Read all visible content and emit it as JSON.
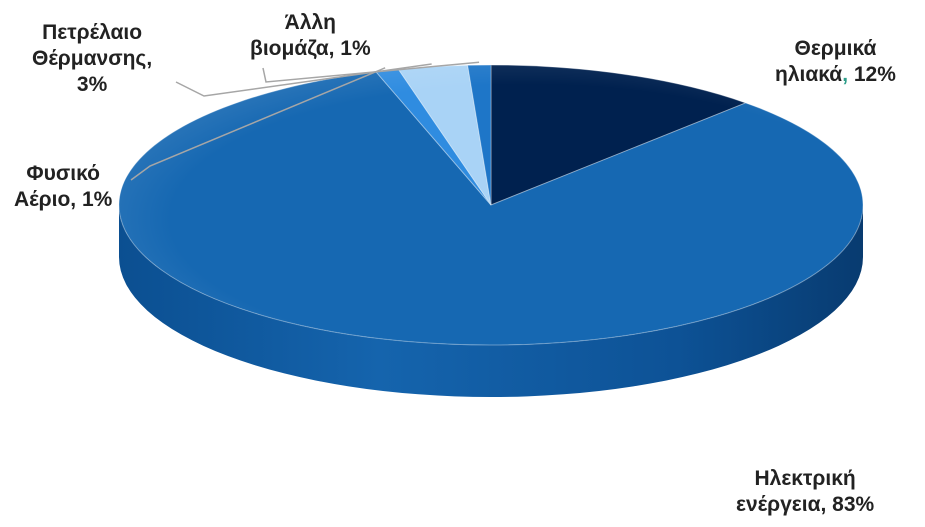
{
  "chart_data": {
    "type": "pie",
    "style": "3d",
    "legend": "none",
    "slices": [
      {
        "key": "thermal-solar",
        "line1": "Θερμικά",
        "line2a": "ηλιακά",
        "sep": ",",
        "line2b": " 12%",
        "value": 12,
        "color": "#00214f"
      },
      {
        "key": "electricity",
        "line1": "Ηλεκτρική",
        "line2a": "ενέργεια, 83%",
        "sep": "",
        "line2b": "",
        "value": 83,
        "color": "#1668b2"
      },
      {
        "key": "natural-gas",
        "line1": "Φυσικό",
        "line2a": "Αέριο, 1%",
        "sep": "",
        "line2b": "",
        "value": 1,
        "color": "#2f8ce0"
      },
      {
        "key": "heating-oil",
        "line1": "Πετρέλαιο",
        "line2a": "Θέρμανσης,",
        "sep": "",
        "line2b": "",
        "line3": "3%",
        "value": 3,
        "color": "#a9d3f6"
      },
      {
        "key": "other-biomass",
        "line1": "Άλλη",
        "line2a": "βιομάζα, 1%",
        "sep": "",
        "line2b": "",
        "value": 1,
        "color": "#1e76c8"
      }
    ]
  }
}
